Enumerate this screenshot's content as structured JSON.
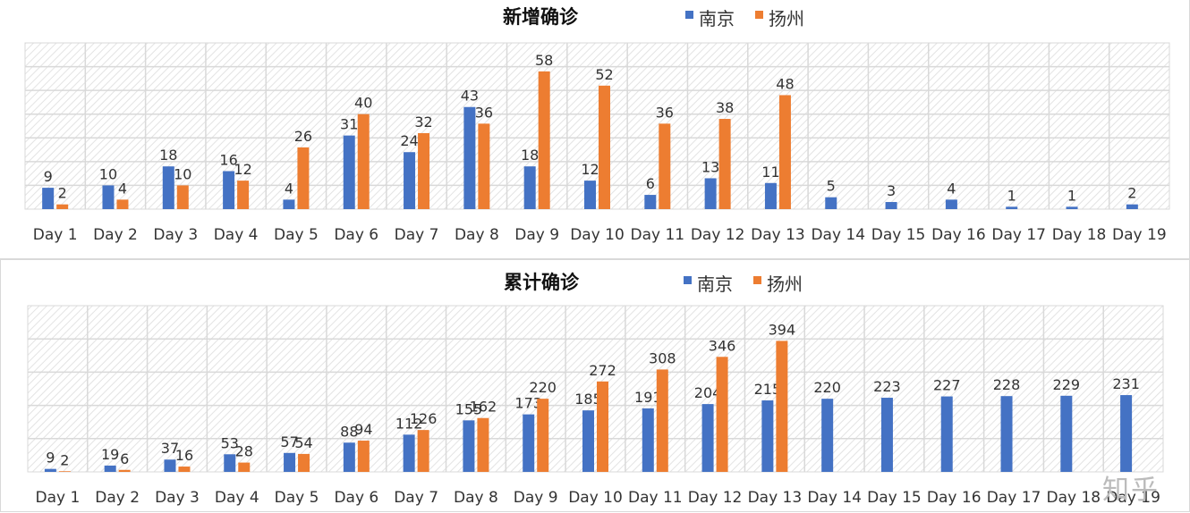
{
  "colors": {
    "nanjing": "#4472C4",
    "yangzhou": "#ED7D31",
    "grid": "#d9d9d9",
    "hatch": "#e3e3e3"
  },
  "legend": {
    "series1": "南京",
    "series2": "扬州"
  },
  "watermark": "知乎",
  "chart_data": [
    {
      "type": "bar",
      "title": "新增确诊",
      "categories": [
        "Day 1",
        "Day 2",
        "Day 3",
        "Day 4",
        "Day 5",
        "Day 6",
        "Day 7",
        "Day 8",
        "Day 9",
        "Day 10",
        "Day 11",
        "Day 12",
        "Day 13",
        "Day 14",
        "Day 15",
        "Day 16",
        "Day 17",
        "Day 18",
        "Day 19"
      ],
      "series": [
        {
          "name": "南京",
          "values": [
            9,
            10,
            18,
            16,
            4,
            31,
            24,
            43,
            18,
            12,
            6,
            13,
            11,
            5,
            3,
            4,
            1,
            1,
            2
          ]
        },
        {
          "name": "扬州",
          "values": [
            2,
            4,
            10,
            12,
            26,
            40,
            32,
            36,
            58,
            52,
            36,
            38,
            48,
            null,
            null,
            null,
            null,
            null,
            null
          ]
        }
      ],
      "ylim": [
        0,
        70
      ],
      "legend_position": "top",
      "grid": true
    },
    {
      "type": "bar",
      "title": "累计确诊",
      "categories": [
        "Day 1",
        "Day 2",
        "Day 3",
        "Day 4",
        "Day 5",
        "Day 6",
        "Day 7",
        "Day 8",
        "Day 9",
        "Day 10",
        "Day 11",
        "Day 12",
        "Day 13",
        "Day 14",
        "Day 15",
        "Day 16",
        "Day 17",
        "Day 18",
        "Day 19"
      ],
      "series": [
        {
          "name": "南京",
          "values": [
            9,
            19,
            37,
            53,
            57,
            88,
            112,
            155,
            173,
            185,
            191,
            204,
            215,
            220,
            223,
            227,
            228,
            229,
            231
          ]
        },
        {
          "name": "扬州",
          "values": [
            2,
            6,
            16,
            28,
            54,
            94,
            126,
            162,
            220,
            272,
            308,
            346,
            394,
            null,
            null,
            null,
            null,
            null,
            null
          ]
        }
      ],
      "ylim": [
        0,
        500
      ],
      "legend_position": "top",
      "grid": true
    }
  ]
}
